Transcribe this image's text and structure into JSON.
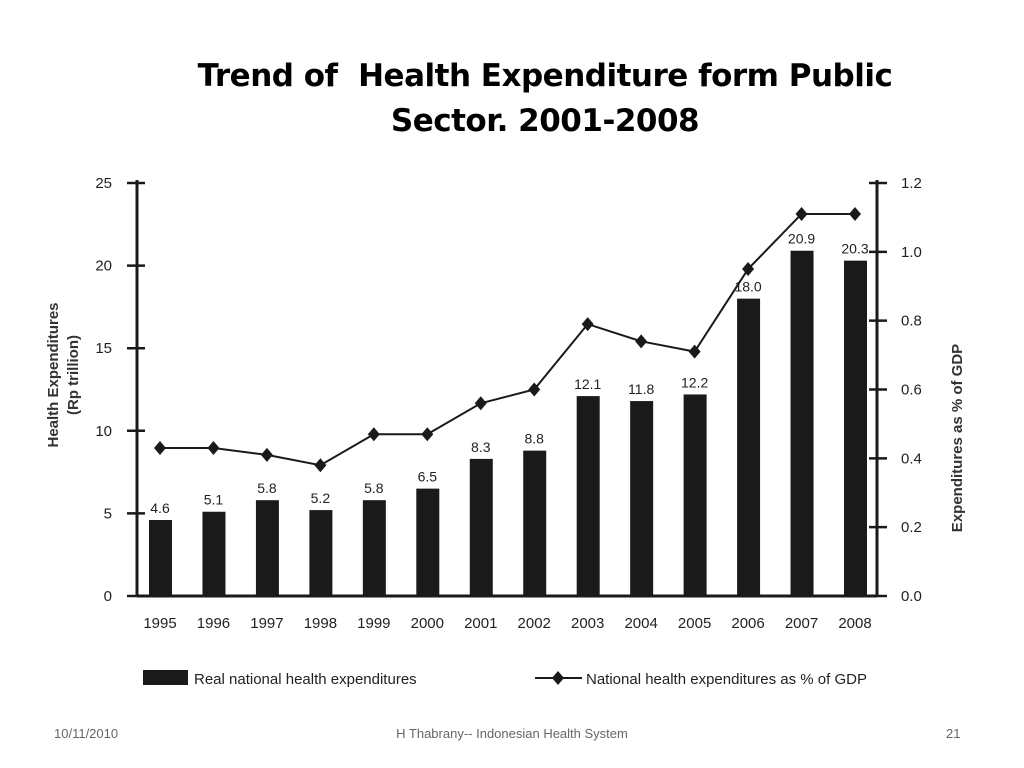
{
  "slide": {
    "title_line1": "Trend of  Health Expenditure form Public",
    "title_line2": "Sector. 2001-2008",
    "footer_date": "10/11/2010",
    "footer_center": "H Thabrany-- Indonesian Health System",
    "footer_page": "21"
  },
  "chart_data": {
    "type": "bar",
    "categories": [
      "1995",
      "1996",
      "1997",
      "1998",
      "1999",
      "2000",
      "2001",
      "2002",
      "2003",
      "2004",
      "2005",
      "2006",
      "2007",
      "2008"
    ],
    "series": [
      {
        "name": "Real national health expenditures",
        "type": "bar",
        "axis": "left",
        "values": [
          4.6,
          5.1,
          5.8,
          5.2,
          5.8,
          6.5,
          8.3,
          8.8,
          12.1,
          11.8,
          12.2,
          18.0,
          20.9,
          20.3
        ],
        "labels": [
          "4.6",
          "5.1",
          "5.8",
          "5.2",
          "5.8",
          "6.5",
          "8.3",
          "8.8",
          "12.1",
          "11.8",
          "12.2",
          "18.0",
          "20.9",
          "20.3"
        ]
      },
      {
        "name": "National health expenditures as % of GDP",
        "type": "line",
        "axis": "right",
        "marker": "diamond",
        "values": [
          0.43,
          0.43,
          0.41,
          0.38,
          0.47,
          0.47,
          0.56,
          0.6,
          0.79,
          0.74,
          0.71,
          0.95,
          1.11,
          1.11
        ]
      }
    ],
    "ylabel": "Health Expenditures (Rp trillion)",
    "ylabel_line1": "Health Expenditures",
    "ylabel_line2": "(Rp trillion)",
    "y2label": "Expenditures as % of GDP",
    "ylim": [
      0,
      25
    ],
    "y2lim": [
      0,
      1.2
    ],
    "yticks": [
      "0",
      "5",
      "10",
      "15",
      "20",
      "25"
    ],
    "y2ticks": [
      "0.0",
      "0.2",
      "0.4",
      "0.6",
      "0.8",
      "1.0",
      "1.2"
    ],
    "grid": false,
    "legend": "bottom",
    "colors": {
      "bar": "#1a1a1a",
      "line": "#1a1a1a"
    }
  }
}
